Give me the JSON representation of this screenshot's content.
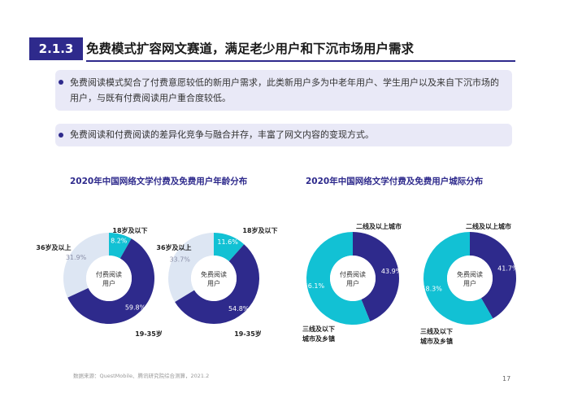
{
  "header": {
    "section_number": "2.1.3",
    "title": "免费模式扩容网文赛道，满足老少用户和下沉市场用户需求"
  },
  "bullets": [
    "免费阅读模式契合了付费意愿较低的新用户需求，此类新用户多为中老年用户、学生用户以及来自下沉市场的用户，与既有付费阅读用户重合度较低。",
    "免费阅读和付费阅读的差异化竞争与融合并存，丰富了网文内容的变现方式。"
  ],
  "colors": {
    "dark": "#2e2a8c",
    "cyan": "#12c1d4",
    "light": "#dde6f3",
    "brand": "#2e2a8c"
  },
  "chart_data": [
    {
      "type": "pie",
      "group_title": "2020年中国网络文学付费及免费用户年龄分布",
      "title": "付费阅读用户",
      "categories": [
        "18岁及以下",
        "19-35岁",
        "36岁及以上"
      ],
      "values": [
        8.2,
        59.8,
        31.9
      ],
      "value_labels": [
        "8.2%",
        "59.8%",
        "31.9%"
      ],
      "colors": [
        "#12c1d4",
        "#2e2a8c",
        "#dde6f3"
      ]
    },
    {
      "type": "pie",
      "group_title": "2020年中国网络文学付费及免费用户年龄分布",
      "title": "免费阅读用户",
      "categories": [
        "18岁及以下",
        "19-35岁",
        "36岁及以上"
      ],
      "values": [
        11.6,
        54.8,
        33.7
      ],
      "value_labels": [
        "11.6%",
        "54.8%",
        "33.7%"
      ],
      "colors": [
        "#12c1d4",
        "#2e2a8c",
        "#dde6f3"
      ]
    },
    {
      "type": "pie",
      "group_title": "2020年中国网络文学付费及免费用户城际分布",
      "title": "付费阅读用户",
      "categories": [
        "二线及以上城市",
        "三线及以下城市及乡镇"
      ],
      "values": [
        43.9,
        56.1
      ],
      "value_labels": [
        "43.9%",
        "56.1%"
      ],
      "colors": [
        "#2e2a8c",
        "#12c1d4"
      ]
    },
    {
      "type": "pie",
      "group_title": "2020年中国网络文学付费及免费用户城际分布",
      "title": "免费阅读用户",
      "categories": [
        "二线及以上城市",
        "三线及以下城市及乡镇"
      ],
      "values": [
        41.7,
        58.3
      ],
      "value_labels": [
        "41.7%",
        "58.3%"
      ],
      "colors": [
        "#2e2a8c",
        "#12c1d4"
      ]
    }
  ],
  "group_titles": {
    "age": "2020年中国网络文学付费及免费用户年龄分布",
    "city": "2020年中国网络文学付费及免费用户城际分布"
  },
  "center_labels": [
    [
      "付费阅读",
      "用户"
    ],
    [
      "免费阅读",
      "用户"
    ],
    [
      "付费阅读",
      "用户"
    ],
    [
      "免费阅读",
      "用户"
    ]
  ],
  "category_labels": {
    "age_young": "18岁及以下",
    "age_mid": "19-35岁",
    "age_old": "36岁及以上",
    "city_high": "二线及以上城市",
    "city_low_line1": "三线及以下",
    "city_low_line2": "城市及乡镇"
  },
  "footer": {
    "source": "数据来源：QuestMobile、腾讯研究院综合测算，2021.2",
    "page_number": "17"
  }
}
